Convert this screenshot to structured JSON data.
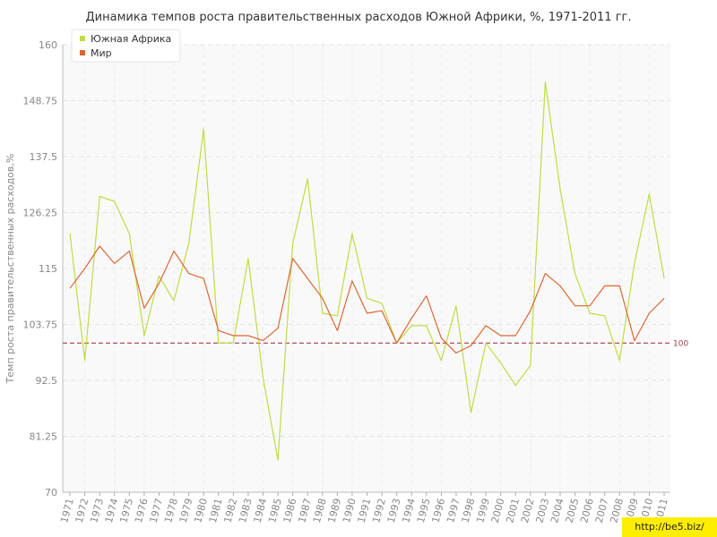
{
  "chart_data": {
    "type": "line",
    "title": "Динамика темпов роста правительственных расходов Южной Африки, %, 1971-2011 гг.",
    "ylabel": "Темп роста правительственных расходов,%",
    "xlabel": "",
    "ylim": [
      70,
      160
    ],
    "yticks": [
      "70",
      "81.25",
      "92.5",
      "103.75",
      "115",
      "126.25",
      "137.5",
      "148.75",
      "160"
    ],
    "x": [
      "1971",
      "1972",
      "1973",
      "1974",
      "1975",
      "1976",
      "1977",
      "1978",
      "1979",
      "1980",
      "1981",
      "1982",
      "1983",
      "1984",
      "1985",
      "1986",
      "1987",
      "1988",
      "1989",
      "1990",
      "1991",
      "1992",
      "1993",
      "1994",
      "1995",
      "1996",
      "1997",
      "1998",
      "1999",
      "2000",
      "2001",
      "2002",
      "2003",
      "2004",
      "2005",
      "2006",
      "2007",
      "2008",
      "2009",
      "2010",
      "2011"
    ],
    "series": [
      {
        "name": "Южная Африка",
        "color": "#bedd44",
        "values": [
          122,
          96.5,
          129.5,
          128.5,
          122,
          101.5,
          113.5,
          108.5,
          120,
          143,
          100,
          100,
          117,
          93,
          76.5,
          120,
          133,
          106,
          105.5,
          122,
          109,
          108,
          100,
          103.5,
          103.5,
          96.5,
          107.5,
          86,
          100,
          96,
          91.5,
          95.5,
          152.5,
          131,
          114,
          106,
          105.5,
          96.5,
          116,
          130,
          113
        ]
      },
      {
        "name": "Мир",
        "color": "#dd6633",
        "values": [
          111,
          115,
          119.5,
          116,
          118.5,
          107,
          112,
          118.5,
          114,
          113,
          102.5,
          101.5,
          101.5,
          100.5,
          103,
          117,
          113,
          109,
          102.5,
          112.5,
          106,
          106.5,
          100,
          105,
          109.5,
          101,
          98,
          99.5,
          103.5,
          101.5,
          101.5,
          106.5,
          114,
          111.5,
          107.5,
          107.5,
          111.5,
          111.5,
          100.5,
          106,
          109
        ]
      }
    ],
    "reference_line": {
      "value": 100,
      "label": "100",
      "color": "#a04050"
    },
    "legend": "top-left",
    "grid": true
  },
  "watermark": "http://be5.biz/"
}
